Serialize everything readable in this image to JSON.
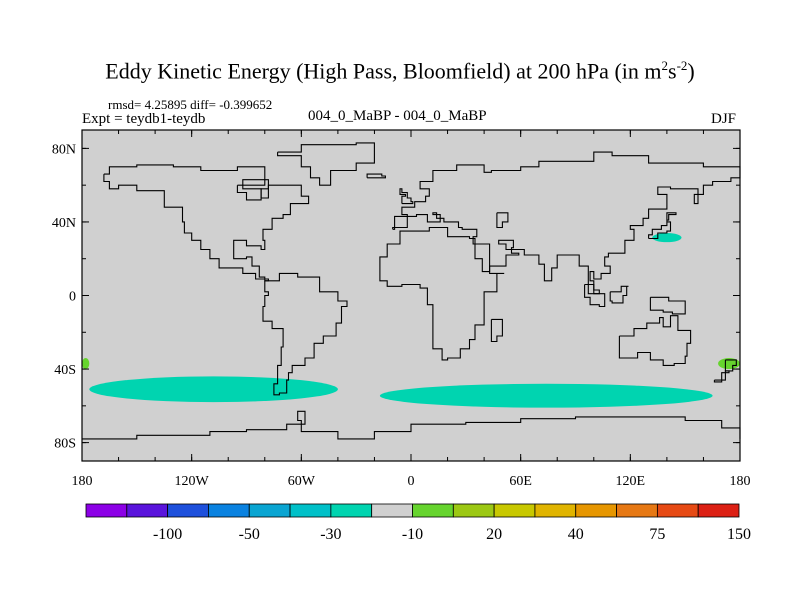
{
  "chart_data": {
    "type": "heatmap",
    "title_main": "Eddy Kinetic Energy (High Pass, Bloomfield) at 200 hPa (in m",
    "title_unit_sup1": "2",
    "title_unit_s": "s",
    "title_unit_sup2": "-2",
    "title_close": ")",
    "stats": "rmsd= 4.25895  diff= -0.399652",
    "expt": "Expt = teydb1-teydb",
    "case": "004_0_MaBP - 004_0_MaBP",
    "season": "DJF",
    "xlim": [
      -180,
      180
    ],
    "ylim": [
      -90,
      90
    ],
    "x_ticks": [
      {
        "value": -180,
        "label": "180"
      },
      {
        "value": -120,
        "label": "120W"
      },
      {
        "value": -60,
        "label": "60W"
      },
      {
        "value": 0,
        "label": "0"
      },
      {
        "value": 60,
        "label": "60E"
      },
      {
        "value": 120,
        "label": "120E"
      },
      {
        "value": 180,
        "label": "180"
      }
    ],
    "y_ticks": [
      {
        "value": 80,
        "label": "80N"
      },
      {
        "value": 40,
        "label": "40N"
      },
      {
        "value": 0,
        "label": "0"
      },
      {
        "value": -40,
        "label": "40S"
      },
      {
        "value": -80,
        "label": "80S"
      }
    ],
    "background_level": {
      "range": "-10 to 10",
      "color": "#d0d0d0"
    },
    "regions": [
      {
        "name": "north-pacific-anomaly",
        "level": "-20 to -10",
        "color": "#00d4b0",
        "lon": [
          132,
          148
        ],
        "lat": [
          29,
          34
        ]
      },
      {
        "name": "south-pacific-anomaly",
        "level": "-20 to -10",
        "color": "#00d4b0",
        "lon": [
          -176,
          -40
        ],
        "lat": [
          -58,
          -44
        ]
      },
      {
        "name": "southern-ocean-anomaly",
        "level": "-20 to -10",
        "color": "#00d4b0",
        "lon": [
          -17,
          165
        ],
        "lat": [
          -61,
          -48
        ]
      },
      {
        "name": "tasman-positive",
        "level": "10 to 20",
        "color": "#66d42e",
        "lon": [
          168,
          180
        ],
        "lat": [
          -40,
          -34
        ]
      },
      {
        "name": "dateline-positive",
        "level": "10 to 20",
        "color": "#66d42e",
        "lon": [
          -180,
          -176
        ],
        "lat": [
          -40,
          -34
        ]
      }
    ],
    "colorbar": {
      "colors": [
        "#8c00e6",
        "#5a14dc",
        "#1e50dc",
        "#0a82e0",
        "#0aa5d2",
        "#00c0c8",
        "#00d4b0",
        "#d0d0d0",
        "#66d42e",
        "#9cc814",
        "#c8c800",
        "#e0b400",
        "#e69600",
        "#e67814",
        "#e64a14",
        "#dc2014"
      ],
      "labels": [
        "-100",
        "-50",
        "-30",
        "-10",
        "20",
        "40",
        "75",
        "150"
      ]
    }
  }
}
